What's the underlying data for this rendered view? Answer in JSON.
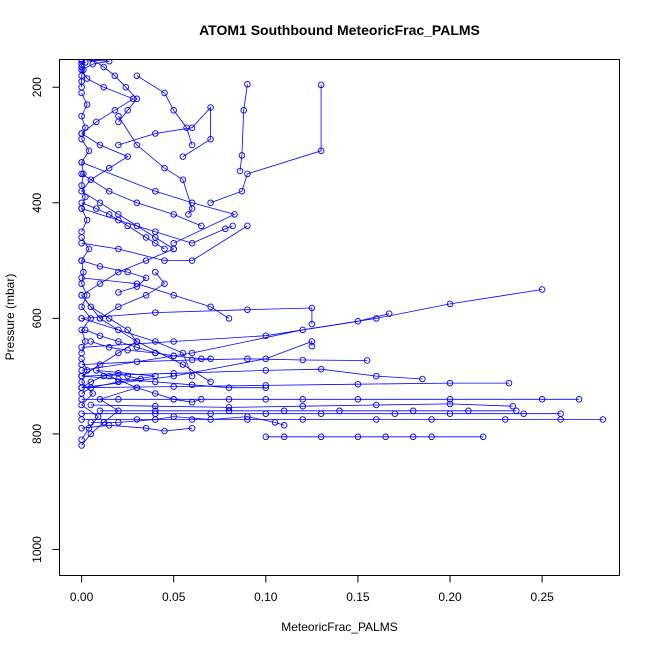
{
  "chart_data": {
    "type": "line",
    "title": "ATOM1 Southbound MeteoricFrac_PALMS",
    "xlabel": "MeteoricFrac_PALMS",
    "ylabel": "Pressure (mbar)",
    "xlim": [
      -0.012,
      0.292
    ],
    "ylim": [
      1045,
      152
    ],
    "y_reversed": true,
    "x_ticks": [
      0.0,
      0.05,
      0.1,
      0.15,
      0.2,
      0.25
    ],
    "x_tick_labels": [
      "0.00",
      "0.05",
      "0.10",
      "0.15",
      "0.20",
      "0.25"
    ],
    "y_ticks": [
      200,
      400,
      600,
      800,
      1000
    ],
    "y_tick_labels": [
      "200",
      "400",
      "600",
      "800",
      "1000"
    ],
    "grid": false,
    "legend": "none",
    "series_color": "#0000ff",
    "marker": "open-circle",
    "series": [
      {
        "x": [
          0.0,
          0.005,
          0.012,
          0.02,
          0.01,
          0.03,
          0.015,
          0.008,
          0.04,
          0.02,
          0.005,
          0.0
        ],
        "y": [
          820,
          800,
          780,
          760,
          740,
          720,
          700,
          690,
          700,
          710,
          720,
          730
        ]
      },
      {
        "x": [
          0.0,
          0.01,
          0.02,
          0.03,
          0.025,
          0.015,
          0.005,
          0.0,
          0.01,
          0.02,
          0.035,
          0.05
        ],
        "y": [
          700,
          680,
          660,
          640,
          620,
          600,
          580,
          560,
          540,
          520,
          500,
          480
        ]
      },
      {
        "x": [
          0.05,
          0.04,
          0.03,
          0.02,
          0.01,
          0.0,
          0.005,
          0.015,
          0.025,
          0.01,
          0.0
        ],
        "y": [
          480,
          460,
          440,
          420,
          400,
          380,
          360,
          340,
          320,
          300,
          280
        ]
      },
      {
        "x": [
          0.0,
          0.008,
          0.018,
          0.028,
          0.012,
          0.003,
          0.0,
          0.006,
          0.015,
          0.0
        ],
        "y": [
          280,
          260,
          240,
          220,
          200,
          185,
          170,
          160,
          155,
          152
        ]
      },
      {
        "x": [
          0.0,
          0.004,
          0.009,
          0.0,
          0.006,
          0.0,
          0.003,
          0.0
        ],
        "y": [
          810,
          790,
          770,
          750,
          730,
          710,
          690,
          670
        ]
      },
      {
        "x": [
          0.0,
          0.002,
          0.0,
          0.005,
          0.0,
          0.003,
          0.0,
          0.001,
          0.0,
          0.004,
          0.0
        ],
        "y": [
          660,
          640,
          620,
          600,
          580,
          560,
          540,
          520,
          500,
          480,
          460
        ]
      },
      {
        "x": [
          0.0,
          0.003,
          0.0,
          0.002,
          0.0,
          0.001,
          0.0,
          0.004,
          0.0,
          0.002,
          0.0,
          0.003,
          0.0
        ],
        "y": [
          450,
          430,
          410,
          390,
          370,
          350,
          330,
          310,
          290,
          270,
          250,
          230,
          210
        ]
      },
      {
        "x": [
          0.0,
          0.0,
          0.0,
          0.001,
          0.0,
          0.0,
          0.002,
          0.0
        ],
        "y": [
          200,
          190,
          180,
          170,
          165,
          160,
          157,
          154
        ]
      },
      {
        "x": [
          0.0,
          0.02,
          0.05,
          0.08,
          0.1,
          0.12,
          0.15,
          0.2,
          0.25,
          0.27
        ],
        "y": [
          740,
          740,
          740,
          740,
          740,
          740,
          740,
          740,
          740,
          740
        ]
      },
      {
        "x": [
          0.0,
          0.03,
          0.06,
          0.09,
          0.12,
          0.16,
          0.19,
          0.23,
          0.26,
          0.283
        ],
        "y": [
          775,
          775,
          775,
          775,
          775,
          775,
          775,
          775,
          775,
          775
        ]
      },
      {
        "x": [
          0.0,
          0.04,
          0.07,
          0.1,
          0.13,
          0.17,
          0.2,
          0.24,
          0.26
        ],
        "y": [
          765,
          765,
          765,
          765,
          765,
          765,
          765,
          765,
          765
        ]
      },
      {
        "x": [
          0.01,
          0.04,
          0.08,
          0.11,
          0.14,
          0.18,
          0.21,
          0.236
        ],
        "y": [
          760,
          760,
          760,
          760,
          760,
          760,
          760,
          760
        ]
      },
      {
        "x": [
          0.1,
          0.11,
          0.13,
          0.15,
          0.165,
          0.18,
          0.19,
          0.218
        ],
        "y": [
          805,
          805,
          805,
          805,
          805,
          805,
          805,
          805
        ]
      },
      {
        "x": [
          0.005,
          0.04,
          0.08,
          0.12,
          0.16,
          0.2,
          0.234
        ],
        "y": [
          750,
          752,
          754,
          752,
          750,
          748,
          752
        ]
      },
      {
        "x": [
          0.0,
          0.05,
          0.1,
          0.15,
          0.2,
          0.232
        ],
        "y": [
          720,
          718,
          716,
          714,
          712,
          712
        ]
      },
      {
        "x": [
          0.0,
          0.06,
          0.12,
          0.16,
          0.2,
          0.25
        ],
        "y": [
          690,
          660,
          620,
          600,
          575,
          550
        ]
      },
      {
        "x": [
          0.0,
          0.05,
          0.1,
          0.15,
          0.167
        ],
        "y": [
          650,
          640,
          630,
          605,
          592
        ]
      },
      {
        "x": [
          0.0,
          0.04,
          0.09,
          0.125,
          0.125
        ],
        "y": [
          600,
          590,
          585,
          582,
          610
        ]
      },
      {
        "x": [
          0.0,
          0.05,
          0.1,
          0.125,
          0.125
        ],
        "y": [
          720,
          700,
          670,
          640,
          648
        ]
      },
      {
        "x": [
          0.0,
          0.03,
          0.06,
          0.09,
          0.12,
          0.155
        ],
        "y": [
          680,
          675,
          672,
          670,
          672,
          673
        ]
      },
      {
        "x": [
          0.0,
          0.05,
          0.1,
          0.13,
          0.16,
          0.185
        ],
        "y": [
          700,
          695,
          690,
          688,
          700,
          705
        ]
      },
      {
        "x": [
          0.13,
          0.13,
          0.09,
          0.087,
          0.07
        ],
        "y": [
          196,
          310,
          350,
          380,
          400
        ]
      },
      {
        "x": [
          0.09,
          0.088,
          0.087,
          0.086
        ],
        "y": [
          195,
          240,
          318,
          345
        ]
      },
      {
        "x": [
          0.02,
          0.04,
          0.06,
          0.07,
          0.07,
          0.055
        ],
        "y": [
          300,
          280,
          270,
          235,
          290,
          320
        ]
      },
      {
        "x": [
          0.03,
          0.045,
          0.05,
          0.057,
          0.06
        ],
        "y": [
          180,
          210,
          240,
          270,
          300
        ]
      },
      {
        "x": [
          0.0,
          0.015,
          0.03,
          0.05,
          0.065
        ],
        "y": [
          350,
          380,
          400,
          420,
          440
        ]
      },
      {
        "x": [
          0.0,
          0.02,
          0.04,
          0.06,
          0.078,
          0.082
        ],
        "y": [
          410,
          430,
          450,
          470,
          445,
          440
        ]
      },
      {
        "x": [
          0.0,
          0.02,
          0.045,
          0.06,
          0.09
        ],
        "y": [
          470,
          480,
          500,
          500,
          440
        ]
      },
      {
        "x": [
          0.0,
          0.03,
          0.05,
          0.07,
          0.08
        ],
        "y": [
          530,
          540,
          560,
          580,
          600
        ]
      },
      {
        "x": [
          0.0,
          0.02,
          0.04,
          0.055,
          0.06
        ],
        "y": [
          600,
          620,
          640,
          660,
          700
        ]
      },
      {
        "x": [
          0.0,
          0.01,
          0.03,
          0.055,
          0.07
        ],
        "y": [
          560,
          600,
          640,
          680,
          710
        ]
      },
      {
        "x": [
          0.0,
          0.02,
          0.04,
          0.06,
          0.08,
          0.1
        ],
        "y": [
          700,
          705,
          710,
          715,
          720,
          720
        ]
      },
      {
        "x": [
          0.0,
          0.015,
          0.035,
          0.045,
          0.06
        ],
        "y": [
          790,
          785,
          790,
          795,
          790
        ]
      },
      {
        "x": [
          0.005,
          0.02,
          0.04,
          0.05,
          0.07,
          0.09,
          0.105,
          0.11
        ],
        "y": [
          780,
          780,
          775,
          770,
          775,
          770,
          780,
          785
        ]
      },
      {
        "x": [
          0.0,
          0.04,
          0.06,
          0.083,
          0.05
        ],
        "y": [
          330,
          380,
          400,
          420,
          470
        ]
      },
      {
        "x": [
          0.02,
          0.03,
          0.045,
          0.055,
          0.06,
          0.058
        ],
        "y": [
          250,
          300,
          340,
          360,
          410,
          420
        ]
      },
      {
        "x": [
          0.005,
          0.012,
          0.018,
          0.024,
          0.03,
          0.025,
          0.02
        ],
        "y": [
          150,
          165,
          180,
          200,
          220,
          240,
          260
        ]
      },
      {
        "x": [
          0.01,
          0.02,
          0.035,
          0.045,
          0.04
        ],
        "y": [
          600,
          580,
          560,
          540,
          520
        ]
      },
      {
        "x": [
          0.005,
          0.015,
          0.025,
          0.04,
          0.05,
          0.065,
          0.07
        ],
        "y": [
          640,
          650,
          655,
          660,
          665,
          670,
          670
        ]
      },
      {
        "x": [
          0.03,
          0.04,
          0.05,
          0.06,
          0.065
        ],
        "y": [
          720,
          730,
          740,
          745,
          740
        ]
      },
      {
        "x": [
          0.002,
          0.01,
          0.02,
          0.03,
          0.04,
          0.05
        ],
        "y": [
          620,
          630,
          640,
          650,
          660,
          665
        ]
      },
      {
        "x": [
          0.0,
          0.008,
          0.015,
          0.025,
          0.035,
          0.04,
          0.045
        ],
        "y": [
          400,
          410,
          420,
          440,
          460,
          470,
          480
        ]
      },
      {
        "x": [
          0.0,
          0.01,
          0.025,
          0.035,
          0.03,
          0.02
        ],
        "y": [
          500,
          510,
          520,
          530,
          545,
          555
        ]
      },
      {
        "x": [
          0.0,
          0.005,
          0.012,
          0.02,
          0.025,
          0.032
        ],
        "y": [
          720,
          710,
          700,
          695,
          700,
          705
        ]
      }
    ]
  }
}
